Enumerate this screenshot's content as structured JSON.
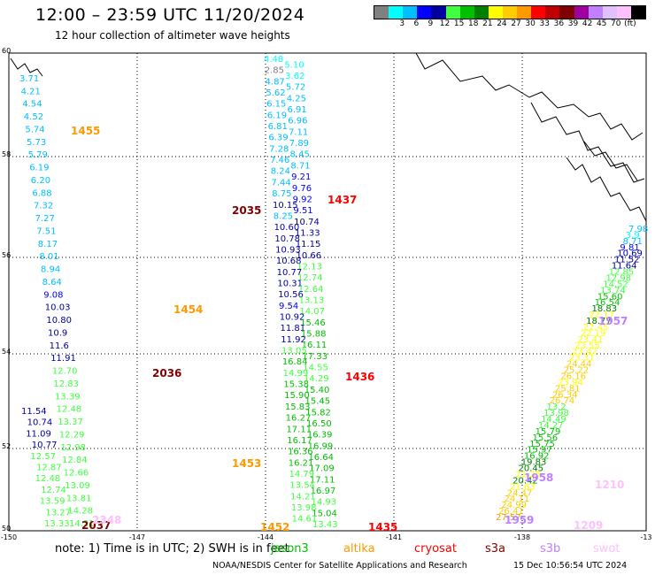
{
  "title": "12:00 – 23:59 UTC 11/20/2024",
  "subtitle": "12 hour collection of altimeter wave heights",
  "colorbar": {
    "colors": [
      "#808080",
      "#00ffff",
      "#00bfff",
      "#0000ff",
      "#0000a0",
      "#40ff40",
      "#00c000",
      "#008000",
      "#ffff00",
      "#ffcc00",
      "#ff9900",
      "#ff0000",
      "#c00000",
      "#800000",
      "#a000a0",
      "#c080ff",
      "#e0c0ff",
      "#ffc0ff",
      "#000000"
    ],
    "labels": [
      "3",
      "6",
      "9",
      "12",
      "15",
      "18",
      "21",
      "24",
      "27",
      "30",
      "33",
      "36",
      "39",
      "42",
      "45",
      "70",
      "(ft)"
    ]
  },
  "axes": {
    "lat_labels": [
      "60",
      "58",
      "56",
      "54",
      "52",
      "50"
    ],
    "lon_labels": [
      "-150",
      "-147",
      "-144",
      "-141",
      "-138",
      "-13"
    ]
  },
  "passes": [
    {
      "id": "p1",
      "labels": [
        {
          "v": "3.71",
          "c": "#00bfff"
        },
        {
          "v": "4.21",
          "c": "#00bfff"
        },
        {
          "v": "4.54",
          "c": "#00bfff"
        },
        {
          "v": "4.52",
          "c": "#00bfff"
        },
        {
          "v": "5.74",
          "c": "#00bfff"
        },
        {
          "v": "5.73",
          "c": "#00bfff"
        },
        {
          "v": "5.79",
          "c": "#00bfff"
        },
        {
          "v": "6.19",
          "c": "#00bfff"
        },
        {
          "v": "6.20",
          "c": "#00bfff"
        },
        {
          "v": "6.88",
          "c": "#00bfff"
        },
        {
          "v": "7.32",
          "c": "#00bfff"
        },
        {
          "v": "7.27",
          "c": "#00bfff"
        },
        {
          "v": "7.51",
          "c": "#00bfff"
        },
        {
          "v": "8.17",
          "c": "#00bfff"
        },
        {
          "v": "8.01",
          "c": "#00bfff"
        },
        {
          "v": "8.94",
          "c": "#00bfff"
        },
        {
          "v": "8.64",
          "c": "#00bfff"
        },
        {
          "v": "9.08",
          "c": "#0000ff"
        },
        {
          "v": "10.03",
          "c": "#0000a0"
        },
        {
          "v": "10.80",
          "c": "#0000a0"
        },
        {
          "v": "10.9",
          "c": "#0000a0"
        },
        {
          "v": "11.6",
          "c": "#0000a0"
        },
        {
          "v": "11.91",
          "c": "#0000a0"
        },
        {
          "v": "12.70",
          "c": "#40ff40"
        },
        {
          "v": "12.83",
          "c": "#40ff40"
        },
        {
          "v": "13.39",
          "c": "#40ff40"
        },
        {
          "v": "12.48",
          "c": "#40ff40"
        },
        {
          "v": "13.37",
          "c": "#40ff40"
        },
        {
          "v": "12.29",
          "c": "#40ff40"
        },
        {
          "v": "12.98",
          "c": "#40ff40"
        },
        {
          "v": "12.84",
          "c": "#40ff40"
        },
        {
          "v": "12.66",
          "c": "#40ff40"
        },
        {
          "v": "13.09",
          "c": "#40ff40"
        },
        {
          "v": "13.81",
          "c": "#40ff40"
        },
        {
          "v": "14.28",
          "c": "#40ff40"
        },
        {
          "v": "14.21",
          "c": "#40ff40"
        }
      ]
    },
    {
      "id": "p2",
      "labels": [
        {
          "v": "11.54",
          "c": "#0000a0"
        },
        {
          "v": "10.74",
          "c": "#0000a0"
        },
        {
          "v": "11.09",
          "c": "#0000a0"
        },
        {
          "v": "10.77",
          "c": "#0000a0"
        },
        {
          "v": "12.57",
          "c": "#40ff40"
        },
        {
          "v": "12.87",
          "c": "#40ff40"
        },
        {
          "v": "12.48",
          "c": "#40ff40"
        },
        {
          "v": "12.74",
          "c": "#40ff40"
        },
        {
          "v": "13.59",
          "c": "#40ff40"
        },
        {
          "v": "13.27",
          "c": "#40ff40"
        },
        {
          "v": "13.33",
          "c": "#40ff40"
        }
      ]
    },
    {
      "id": "p3",
      "labels": [
        {
          "v": "4.48",
          "c": "#00ffff"
        },
        {
          "v": "5.10",
          "c": "#00ffff"
        },
        {
          "v": "2.85",
          "c": "#808080"
        },
        {
          "v": "3.62",
          "c": "#00ffff"
        },
        {
          "v": "4.87",
          "c": "#00bfff"
        },
        {
          "v": "5.72",
          "c": "#00bfff"
        },
        {
          "v": "5.62",
          "c": "#00bfff"
        },
        {
          "v": "4.25",
          "c": "#00bfff"
        },
        {
          "v": "6.15",
          "c": "#00bfff"
        },
        {
          "v": "6.91",
          "c": "#00bfff"
        },
        {
          "v": "6.19",
          "c": "#00bfff"
        },
        {
          "v": "6.96",
          "c": "#00bfff"
        },
        {
          "v": "6.81",
          "c": "#00bfff"
        },
        {
          "v": "7.11",
          "c": "#00bfff"
        },
        {
          "v": "6.39",
          "c": "#00bfff"
        },
        {
          "v": "7.89",
          "c": "#00bfff"
        },
        {
          "v": "7.28",
          "c": "#00bfff"
        },
        {
          "v": "8.45",
          "c": "#00bfff"
        },
        {
          "v": "7.46",
          "c": "#00bfff"
        },
        {
          "v": "8.71",
          "c": "#00bfff"
        },
        {
          "v": "8.24",
          "c": "#00bfff"
        },
        {
          "v": "9.21",
          "c": "#0000ff"
        },
        {
          "v": "7.44",
          "c": "#00bfff"
        },
        {
          "v": "9.76",
          "c": "#0000ff"
        },
        {
          "v": "8.75",
          "c": "#00bfff"
        },
        {
          "v": "9.92",
          "c": "#0000ff"
        },
        {
          "v": "10.15",
          "c": "#0000a0"
        },
        {
          "v": "9.51",
          "c": "#0000ff"
        },
        {
          "v": "8.25",
          "c": "#00bfff"
        },
        {
          "v": "10.74",
          "c": "#0000a0"
        },
        {
          "v": "10.60",
          "c": "#0000a0"
        },
        {
          "v": "11.33",
          "c": "#0000a0"
        },
        {
          "v": "10.78",
          "c": "#0000a0"
        },
        {
          "v": "11.15",
          "c": "#0000a0"
        },
        {
          "v": "10.93",
          "c": "#0000a0"
        },
        {
          "v": "10.66",
          "c": "#0000a0"
        },
        {
          "v": "10.68",
          "c": "#0000a0"
        },
        {
          "v": "12.13",
          "c": "#40ff40"
        },
        {
          "v": "10.77",
          "c": "#0000a0"
        },
        {
          "v": "12.74",
          "c": "#40ff40"
        },
        {
          "v": "10.31",
          "c": "#0000a0"
        },
        {
          "v": "12.64",
          "c": "#40ff40"
        },
        {
          "v": "10.56",
          "c": "#0000a0"
        },
        {
          "v": "13.13",
          "c": "#40ff40"
        },
        {
          "v": "9.54",
          "c": "#0000ff"
        },
        {
          "v": "14.07",
          "c": "#40ff40"
        },
        {
          "v": "10.92",
          "c": "#0000a0"
        },
        {
          "v": "15.46",
          "c": "#00c000"
        },
        {
          "v": "11.81",
          "c": "#0000a0"
        },
        {
          "v": "15.88",
          "c": "#00c000"
        },
        {
          "v": "11.92",
          "c": "#0000a0"
        },
        {
          "v": "16.11",
          "c": "#00c000"
        },
        {
          "v": "13.05",
          "c": "#40ff40"
        },
        {
          "v": "17.33",
          "c": "#00c000"
        },
        {
          "v": "16.84",
          "c": "#00c000"
        },
        {
          "v": "14.55",
          "c": "#40ff40"
        },
        {
          "v": "14.99",
          "c": "#40ff40"
        },
        {
          "v": "14.29",
          "c": "#40ff40"
        },
        {
          "v": "15.38",
          "c": "#00c000"
        },
        {
          "v": "15.40",
          "c": "#00c000"
        },
        {
          "v": "15.90",
          "c": "#00c000"
        },
        {
          "v": "15.45",
          "c": "#00c000"
        },
        {
          "v": "15.83",
          "c": "#00c000"
        },
        {
          "v": "15.82",
          "c": "#00c000"
        },
        {
          "v": "16.27",
          "c": "#00c000"
        },
        {
          "v": "16.50",
          "c": "#00c000"
        },
        {
          "v": "17.11",
          "c": "#00c000"
        },
        {
          "v": "16.39",
          "c": "#00c000"
        },
        {
          "v": "16.17",
          "c": "#00c000"
        },
        {
          "v": "16.99",
          "c": "#00c000"
        },
        {
          "v": "16.36",
          "c": "#00c000"
        },
        {
          "v": "16.64",
          "c": "#00c000"
        },
        {
          "v": "16.21",
          "c": "#00c000"
        },
        {
          "v": "17.09",
          "c": "#00c000"
        },
        {
          "v": "14.79",
          "c": "#40ff40"
        },
        {
          "v": "17.11",
          "c": "#00c000"
        },
        {
          "v": "13.54",
          "c": "#40ff40"
        },
        {
          "v": "16.97",
          "c": "#00c000"
        },
        {
          "v": "14.21",
          "c": "#40ff40"
        },
        {
          "v": "14.93",
          "c": "#40ff40"
        },
        {
          "v": "13.98",
          "c": "#40ff40"
        },
        {
          "v": "15.04",
          "c": "#00c000"
        },
        {
          "v": "14.61",
          "c": "#40ff40"
        },
        {
          "v": "13.43",
          "c": "#40ff40"
        }
      ]
    },
    {
      "id": "p4",
      "labels": [
        {
          "v": "7.98",
          "c": "#00bfff"
        },
        {
          "v": "3.9",
          "c": "#00ffff"
        },
        {
          "v": "8.71",
          "c": "#00bfff"
        },
        {
          "v": "9.81",
          "c": "#0000ff"
        },
        {
          "v": "10.69",
          "c": "#0000a0"
        },
        {
          "v": "11.52",
          "c": "#0000a0"
        },
        {
          "v": "11.64",
          "c": "#0000a0"
        },
        {
          "v": "12.85",
          "c": "#40ff40"
        },
        {
          "v": "12.98",
          "c": "#40ff40"
        },
        {
          "v": "14.52",
          "c": "#40ff40"
        },
        {
          "v": "13.74",
          "c": "#40ff40"
        },
        {
          "v": "15.60",
          "c": "#00c000"
        },
        {
          "v": "16.54",
          "c": "#00c000"
        },
        {
          "v": "18.83",
          "c": "#008000"
        },
        {
          "v": "22.17",
          "c": "#ffff00"
        },
        {
          "v": "18.77",
          "c": "#008000"
        },
        {
          "v": "22.45",
          "c": "#ffff00"
        },
        {
          "v": "22.19",
          "c": "#ffff00"
        },
        {
          "v": "23.41",
          "c": "#ffff00"
        },
        {
          "v": "23.55",
          "c": "#ffff00"
        },
        {
          "v": "23.42",
          "c": "#ffff00"
        },
        {
          "v": "23.31",
          "c": "#ffff00"
        },
        {
          "v": "24.44",
          "c": "#ffcc00"
        },
        {
          "v": "25.22",
          "c": "#ffcc00"
        },
        {
          "v": "26.16",
          "c": "#ffcc00"
        },
        {
          "v": "23.94",
          "c": "#ffff00"
        },
        {
          "v": "25.81",
          "c": "#ffcc00"
        },
        {
          "v": "26.34",
          "c": "#ffcc00"
        },
        {
          "v": "26.74",
          "c": "#ffcc00"
        },
        {
          "v": "13.2",
          "c": "#40ff40"
        },
        {
          "v": "13.98",
          "c": "#40ff40"
        },
        {
          "v": "14.49",
          "c": "#40ff40"
        },
        {
          "v": "14.27",
          "c": "#40ff40"
        },
        {
          "v": "15.79",
          "c": "#00c000"
        },
        {
          "v": "15.56",
          "c": "#00c000"
        },
        {
          "v": "15.75",
          "c": "#00c000"
        },
        {
          "v": "15.97",
          "c": "#00c000"
        },
        {
          "v": "16.92",
          "c": "#00c000"
        },
        {
          "v": "19.83",
          "c": "#008000"
        },
        {
          "v": "20.45",
          "c": "#008000"
        },
        {
          "v": "21.25",
          "c": "#ffff00"
        },
        {
          "v": "20.42",
          "c": "#008000"
        },
        {
          "v": "21.63",
          "c": "#ffff00"
        },
        {
          "v": "24.47",
          "c": "#ffcc00"
        },
        {
          "v": "24.11",
          "c": "#ffcc00"
        },
        {
          "v": "24.99",
          "c": "#ffcc00"
        },
        {
          "v": "26.41",
          "c": "#ffcc00"
        },
        {
          "v": "27.57",
          "c": "#ff9900"
        }
      ]
    }
  ],
  "time_tags": [
    {
      "v": "1455",
      "c": "#ff9900"
    },
    {
      "v": "2035",
      "c": "#800000"
    },
    {
      "v": "1437",
      "c": "#ff0000"
    },
    {
      "v": "1454",
      "c": "#ff9900"
    },
    {
      "v": "2036",
      "c": "#800000"
    },
    {
      "v": "1436",
      "c": "#ff0000"
    },
    {
      "v": "1453",
      "c": "#ff9900"
    },
    {
      "v": "1452",
      "c": "#ff9900"
    },
    {
      "v": "1435",
      "c": "#ff0000"
    },
    {
      "v": "2037",
      "c": "#800000"
    },
    {
      "v": "2348",
      "c": "#ffc0ff"
    },
    {
      "v": "1957",
      "c": "#c080ff"
    },
    {
      "v": "1958",
      "c": "#c080ff"
    },
    {
      "v": "1959",
      "c": "#c080ff"
    },
    {
      "v": "1210",
      "c": "#ffc0ff"
    },
    {
      "v": "1209",
      "c": "#ffc0ff"
    }
  ],
  "footer": {
    "note": "note: 1) Time is in UTC; 2) SWH is in feet",
    "credit": "NOAA/NESDIS Center for Satellite Applications and Research",
    "stamp": "15 Dec 10:56:54 UTC 2024"
  },
  "satellites": [
    {
      "name": "jason3",
      "c": "#00c000"
    },
    {
      "name": "altika",
      "c": "#ff9900"
    },
    {
      "name": "cryosat",
      "c": "#ff0000"
    },
    {
      "name": "s3a",
      "c": "#800000"
    },
    {
      "name": "s3b",
      "c": "#c080ff"
    },
    {
      "name": "swot",
      "c": "#ffc0ff"
    }
  ]
}
